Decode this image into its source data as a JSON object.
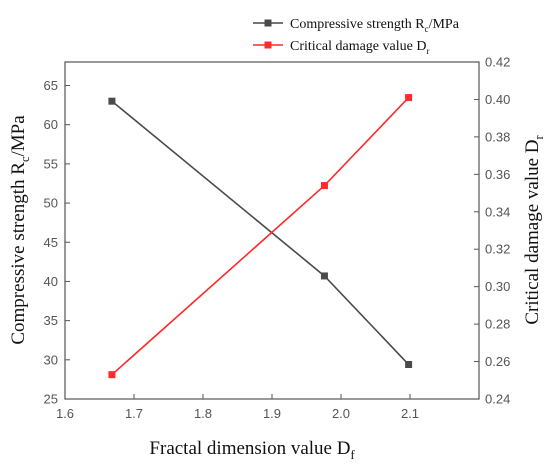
{
  "chart_data": {
    "type": "line",
    "xlabel": "Fractal dimension value D",
    "xlabel_sub": "f",
    "x_ticks": [
      "1.6",
      "1.7",
      "1.8",
      "1.9",
      "2.0",
      "2.1"
    ],
    "xlim": [
      1.6,
      2.2
    ],
    "left_axis": {
      "label": "Compressive strength R",
      "label_sub": "c",
      "label_tail": "/MPa",
      "ticks": [
        "25",
        "30",
        "35",
        "40",
        "45",
        "50",
        "55",
        "60",
        "65"
      ],
      "ylim": [
        25,
        68
      ]
    },
    "right_axis": {
      "label": "Critical damage value D",
      "label_sub": "r",
      "ticks": [
        "0.24",
        "0.26",
        "0.28",
        "0.30",
        "0.32",
        "0.34",
        "0.36",
        "0.38",
        "0.40",
        "0.42"
      ],
      "ylim": [
        0.24,
        0.42
      ]
    },
    "series": [
      {
        "name": "Compressive strength R",
        "name_sub": "c",
        "name_tail": "/MPa",
        "axis": "left",
        "color": "#4a4a4a",
        "x": [
          1.668,
          1.976,
          2.098
        ],
        "y": [
          63.0,
          40.7,
          29.4
        ]
      },
      {
        "name": "Critical damage value D",
        "name_sub": "r",
        "name_tail": "",
        "axis": "right",
        "color": "#ff2a2a",
        "x": [
          1.668,
          1.976,
          2.098
        ],
        "y": [
          0.253,
          0.354,
          0.401
        ]
      }
    ],
    "legend_position": "top-right",
    "grid": false
  }
}
